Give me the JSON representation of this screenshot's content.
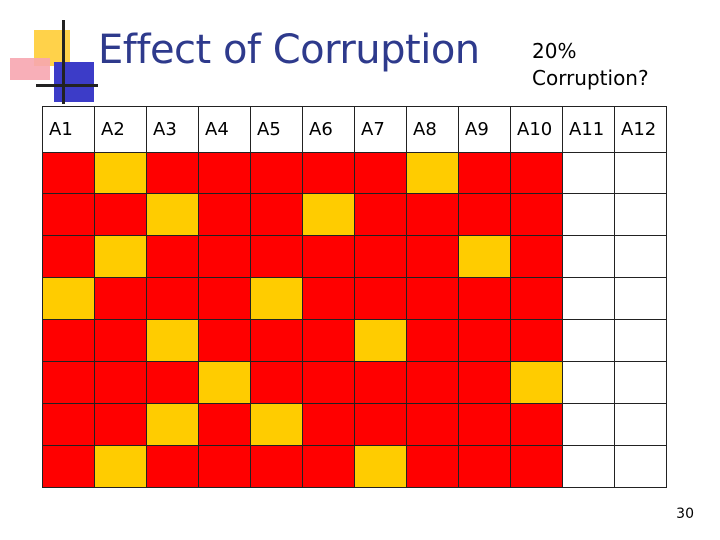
{
  "slide": {
    "title": "Effect of Corruption",
    "note_line1": "20%",
    "note_line2": "Corruption?",
    "page_number": "30"
  },
  "colors": {
    "red": "#ff0000",
    "yellow": "#ffcc00",
    "white": "#ffffff",
    "title_blue": "#2e3a8c"
  },
  "grid": {
    "headers": [
      "A1",
      "A2",
      "A3",
      "A4",
      "A5",
      "A6",
      "A7",
      "A8",
      "A9",
      "A10",
      "A11",
      "A12"
    ],
    "rows": [
      [
        "R",
        "Y",
        "R",
        "R",
        "R",
        "R",
        "R",
        "Y",
        "R",
        "R",
        "W",
        "W"
      ],
      [
        "R",
        "R",
        "Y",
        "R",
        "R",
        "Y",
        "R",
        "R",
        "R",
        "R",
        "W",
        "W"
      ],
      [
        "R",
        "Y",
        "R",
        "R",
        "R",
        "R",
        "R",
        "R",
        "Y",
        "R",
        "W",
        "W"
      ],
      [
        "Y",
        "R",
        "R",
        "R",
        "Y",
        "R",
        "R",
        "R",
        "R",
        "R",
        "W",
        "W"
      ],
      [
        "R",
        "R",
        "Y",
        "R",
        "R",
        "R",
        "Y",
        "R",
        "R",
        "R",
        "W",
        "W"
      ],
      [
        "R",
        "R",
        "R",
        "Y",
        "R",
        "R",
        "R",
        "R",
        "R",
        "Y",
        "W",
        "W"
      ],
      [
        "R",
        "R",
        "Y",
        "R",
        "Y",
        "R",
        "R",
        "R",
        "R",
        "R",
        "W",
        "W"
      ],
      [
        "R",
        "Y",
        "R",
        "R",
        "R",
        "R",
        "Y",
        "R",
        "R",
        "R",
        "W",
        "W"
      ]
    ]
  }
}
